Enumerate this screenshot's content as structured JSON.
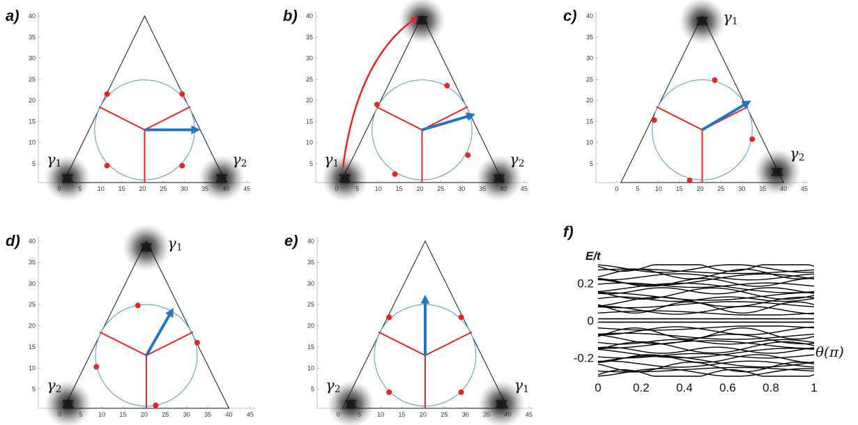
{
  "chart_data": [
    {
      "panel": "a)",
      "type": "scatter",
      "xticks": [
        "0",
        "5",
        "10",
        "15",
        "20",
        "25",
        "30",
        "35",
        "40",
        "45"
      ],
      "yticks": [
        "5",
        "10",
        "15",
        "20",
        "25",
        "30",
        "35",
        "40"
      ],
      "xlim": [
        -5,
        46
      ],
      "ylim": [
        0.5,
        41
      ],
      "triangle": [
        [
          1,
          0.5
        ],
        [
          40,
          0.5
        ],
        [
          20.5,
          40
        ]
      ],
      "circle": {
        "cx": 20.5,
        "cy": 13,
        "r": 12
      },
      "star_lines": [
        [
          [
            20.5,
            13
          ],
          [
            9.5,
            18.5
          ]
        ],
        [
          [
            20.5,
            13
          ],
          [
            31.5,
            18.5
          ]
        ],
        [
          [
            20.5,
            0.5
          ],
          [
            20.5,
            13
          ]
        ]
      ],
      "arrow": [
        [
          20.5,
          13
        ],
        [
          33,
          13
        ]
      ],
      "red_dots": [
        [
          11.5,
          21.5
        ],
        [
          29.5,
          21.5
        ],
        [
          11.5,
          4.5
        ],
        [
          29.5,
          4.5
        ]
      ],
      "blobs": [
        [
          2,
          1.5
        ],
        [
          39,
          1.5
        ]
      ],
      "gammas": [
        {
          "sym": "γ",
          "sub": "1",
          "x": -3,
          "y": 4.8
        },
        {
          "sym": "γ",
          "sub": "2",
          "x": 41.5,
          "y": 4.8
        }
      ],
      "red_arc": null
    },
    {
      "panel": "b)",
      "type": "scatter",
      "xticks": [
        "0",
        "5",
        "10",
        "15",
        "20",
        "25",
        "30",
        "35",
        "40",
        "45"
      ],
      "yticks": [
        "5",
        "10",
        "15",
        "20",
        "25",
        "30",
        "35",
        "40"
      ],
      "xlim": [
        -5,
        46
      ],
      "ylim": [
        0.5,
        41
      ],
      "triangle": [
        [
          1,
          0.5
        ],
        [
          40,
          0.5
        ],
        [
          20.5,
          40
        ]
      ],
      "circle": {
        "cx": 20.5,
        "cy": 13,
        "r": 12
      },
      "star_lines": [
        [
          [
            20.5,
            13
          ],
          [
            9.5,
            18.5
          ]
        ],
        [
          [
            20.5,
            13
          ],
          [
            31.5,
            18.5
          ]
        ],
        [
          [
            20.5,
            0.5
          ],
          [
            20.5,
            13
          ]
        ]
      ],
      "arrow": [
        [
          20.5,
          13
        ],
        [
          32.5,
          16.5
        ]
      ],
      "red_dots": [
        [
          9.7,
          19
        ],
        [
          26.5,
          23.5
        ],
        [
          31.5,
          7
        ],
        [
          14,
          2.5
        ]
      ],
      "blobs": [
        [
          2,
          1.5
        ],
        [
          39,
          1.5
        ],
        [
          20.5,
          39
        ]
      ],
      "gammas": [
        {
          "sym": "γ",
          "sub": "1",
          "x": -3,
          "y": 4.8
        },
        {
          "sym": "γ",
          "sub": "2",
          "x": 41.5,
          "y": 4.8
        }
      ],
      "red_arc": [
        [
          1.5,
          4
        ],
        [
          5,
          30
        ],
        [
          19,
          39.5
        ]
      ]
    },
    {
      "panel": "c)",
      "type": "scatter",
      "xticks": [
        "0",
        "5",
        "10",
        "15",
        "20",
        "25",
        "30",
        "35",
        "40",
        "45"
      ],
      "yticks": [
        "5",
        "10",
        "15",
        "20",
        "25",
        "30",
        "35",
        "40"
      ],
      "xlim": [
        -5,
        46
      ],
      "ylim": [
        0.5,
        41
      ],
      "triangle": [
        [
          1,
          0.5
        ],
        [
          40,
          0.5
        ],
        [
          20.5,
          40
        ]
      ],
      "circle": {
        "cx": 20.5,
        "cy": 13,
        "r": 12
      },
      "star_lines": [
        [
          [
            20.5,
            13
          ],
          [
            9.5,
            18.5
          ]
        ],
        [
          [
            20.5,
            13
          ],
          [
            31.5,
            18.5
          ]
        ],
        [
          [
            20.5,
            0.5
          ],
          [
            20.5,
            13
          ]
        ]
      ],
      "arrow": [
        [
          20.5,
          13
        ],
        [
          31.5,
          19.5
        ]
      ],
      "red_dots": [
        [
          23.5,
          24.8
        ],
        [
          9,
          15.3
        ],
        [
          32.5,
          10.8
        ],
        [
          17.5,
          1
        ]
      ],
      "blobs": [
        [
          20.5,
          38.8
        ],
        [
          38.5,
          3
        ]
      ],
      "gammas": [
        {
          "sym": "γ",
          "sub": "1",
          "x": 25.5,
          "y": 38.5
        },
        {
          "sym": "γ",
          "sub": "2",
          "x": 41.5,
          "y": 6.2
        }
      ],
      "red_arc": null
    },
    {
      "panel": "d)",
      "type": "scatter",
      "xticks": [
        "0",
        "5",
        "10",
        "15",
        "20",
        "25",
        "30",
        "35",
        "40",
        "45"
      ],
      "yticks": [
        "5",
        "10",
        "15",
        "20",
        "25",
        "30",
        "35",
        "40"
      ],
      "xlim": [
        -5,
        46
      ],
      "ylim": [
        0.5,
        41
      ],
      "triangle": [
        [
          1,
          0.5
        ],
        [
          40,
          0.5
        ],
        [
          20.5,
          40
        ]
      ],
      "circle": {
        "cx": 20.5,
        "cy": 13,
        "r": 12
      },
      "star_lines": [
        [
          [
            20.5,
            13
          ],
          [
            9.5,
            18.5
          ]
        ],
        [
          [
            20.5,
            13
          ],
          [
            31.5,
            18.5
          ]
        ],
        [
          [
            20.5,
            0.5
          ],
          [
            20.5,
            13
          ]
        ]
      ],
      "arrow": [
        [
          20.5,
          13
        ],
        [
          26.5,
          23.5
        ]
      ],
      "red_dots": [
        [
          18.5,
          24.8
        ],
        [
          32.5,
          16
        ],
        [
          8.7,
          10.3
        ],
        [
          22.7,
          1.2
        ]
      ],
      "blobs": [
        [
          20.5,
          38.5
        ],
        [
          2,
          1.5
        ]
      ],
      "gammas": [
        {
          "sym": "γ",
          "sub": "1",
          "x": 25.5,
          "y": 38.3
        },
        {
          "sym": "γ",
          "sub": "2",
          "x": -3,
          "y": 4.8
        }
      ],
      "red_arc": null
    },
    {
      "panel": "e)",
      "type": "scatter",
      "xticks": [
        "0",
        "5",
        "10",
        "15",
        "20",
        "25",
        "30",
        "35",
        "40",
        "45"
      ],
      "yticks": [
        "5",
        "10",
        "15",
        "20",
        "25",
        "30",
        "35",
        "40"
      ],
      "xlim": [
        -5,
        46
      ],
      "ylim": [
        0.5,
        41
      ],
      "triangle": [
        [
          1,
          0.5
        ],
        [
          40,
          0.5
        ],
        [
          20.5,
          40
        ]
      ],
      "circle": {
        "cx": 20.5,
        "cy": 13,
        "r": 12
      },
      "star_lines": [
        [
          [
            20.5,
            13
          ],
          [
            9.5,
            18.5
          ]
        ],
        [
          [
            20.5,
            13
          ],
          [
            31.5,
            18.5
          ]
        ],
        [
          [
            20.5,
            0.5
          ],
          [
            20.5,
            13
          ]
        ]
      ],
      "arrow": [
        [
          20.5,
          13
        ],
        [
          20.5,
          26.5
        ]
      ],
      "red_dots": [
        [
          12,
          22
        ],
        [
          29,
          22
        ],
        [
          12,
          4.3
        ],
        [
          29,
          4.3
        ]
      ],
      "blobs": [
        [
          3,
          1.5
        ],
        [
          38.5,
          1.5
        ]
      ],
      "gammas": [
        {
          "sym": "γ",
          "sub": "2",
          "x": -3,
          "y": 4.8
        },
        {
          "sym": "γ",
          "sub": "1",
          "x": 41.5,
          "y": 4.8
        }
      ],
      "red_arc": null
    },
    {
      "panel": "f)",
      "type": "line",
      "ylabel": "E/t",
      "xlabel": "θ(π)",
      "xlim": [
        0,
        1
      ],
      "ylim": [
        -0.3,
        0.3
      ],
      "xticks": [
        0,
        0.2,
        0.4,
        0.6,
        0.8,
        1
      ],
      "xtick_labels": [
        "0",
        "0.2",
        "0.4",
        "0.6",
        "0.8",
        "1"
      ],
      "yticks": [
        -0.2,
        0,
        0.2
      ],
      "ytick_labels": [
        "-0.2",
        "0",
        "0.2"
      ],
      "flat_levels": [
        -0.009,
        0.009
      ],
      "upper_band_levels": [
        0.04,
        0.055,
        0.07,
        0.085,
        0.1,
        0.115,
        0.13,
        0.145,
        0.16,
        0.175,
        0.19,
        0.205,
        0.22,
        0.235,
        0.25,
        0.265,
        0.28,
        0.295
      ],
      "band_symmetry": "particle-hole symmetric (lower band mirrors upper band)"
    }
  ]
}
